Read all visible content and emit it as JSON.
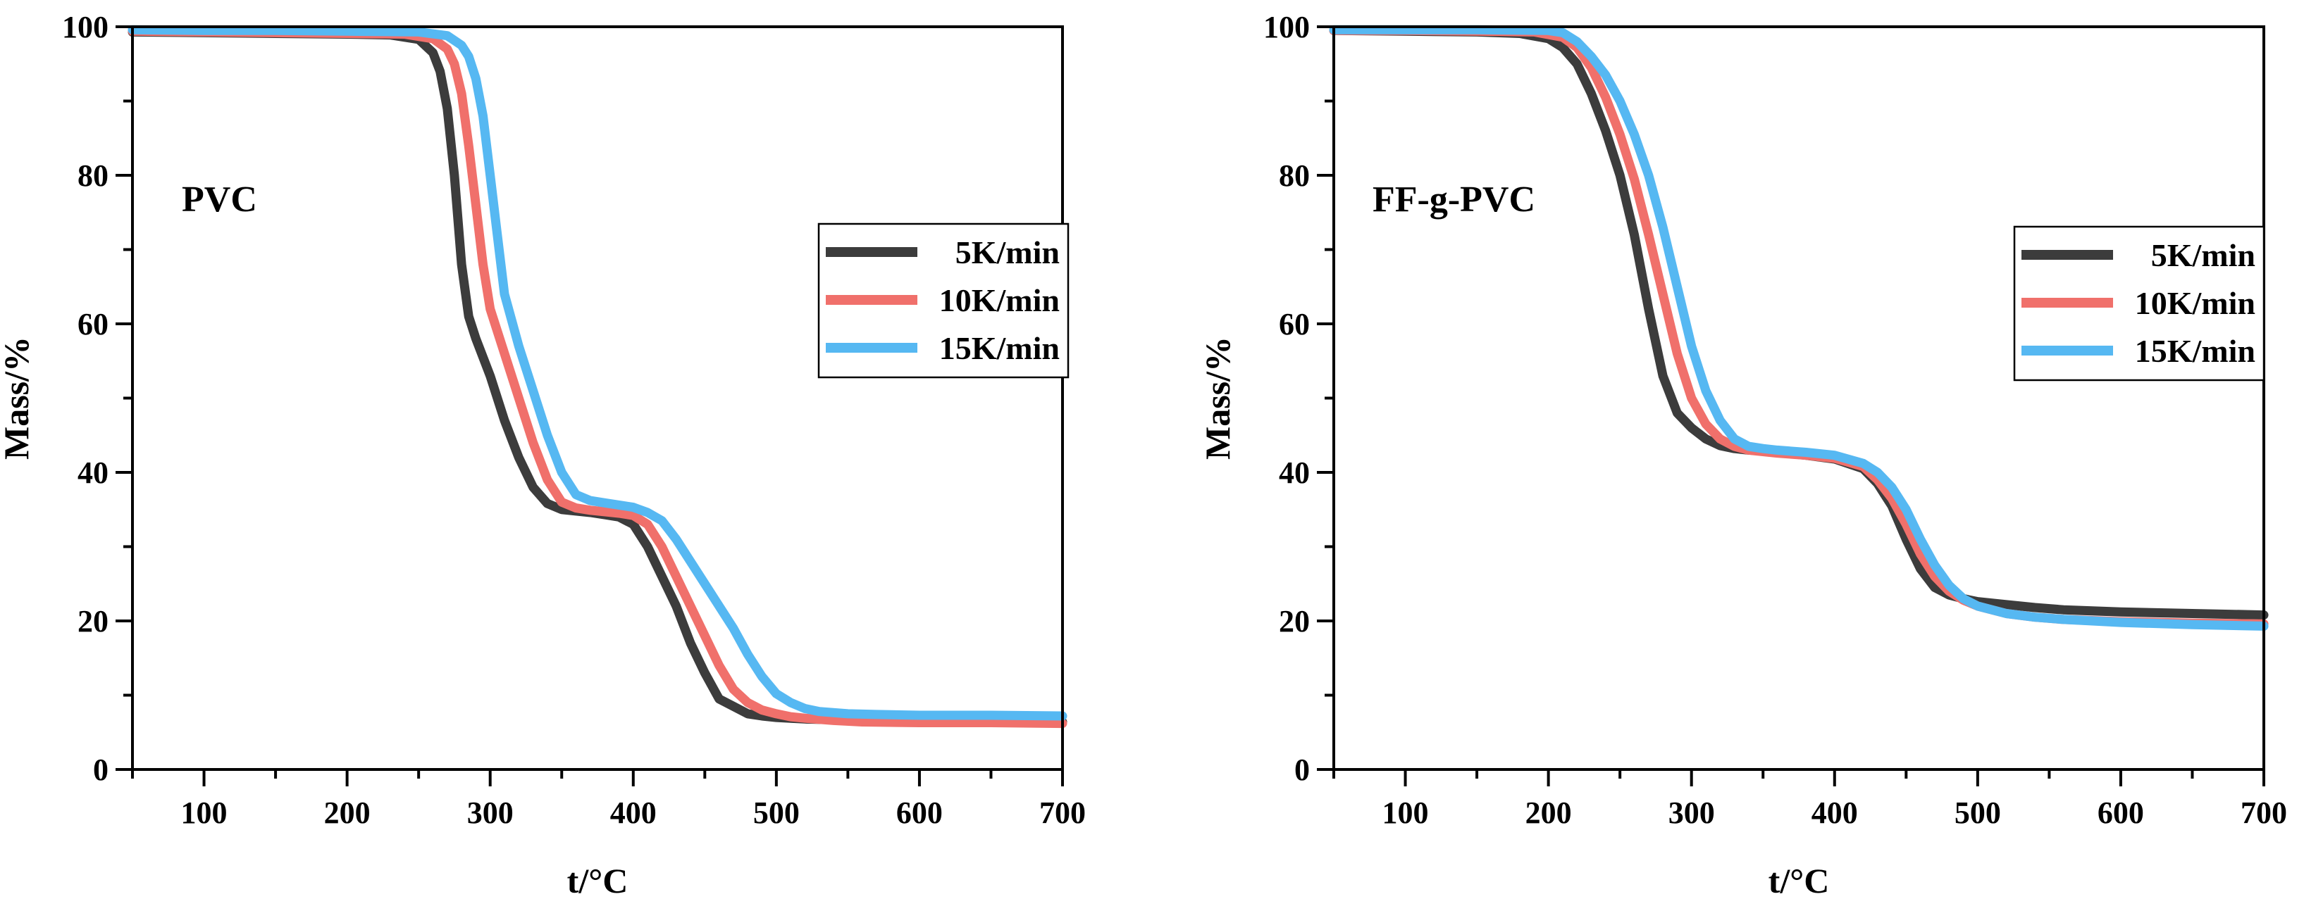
{
  "colors": {
    "5K/min": "#3c3c3c",
    "10K/min": "#f0706b",
    "15K/min": "#56b8f2"
  },
  "chart_data": [
    {
      "type": "line",
      "panel_label": "PVC",
      "xlabel": "t/°C",
      "ylabel": "Mass/%",
      "xlim": [
        50,
        700
      ],
      "ylim": [
        0,
        100
      ],
      "xticks": [
        100,
        200,
        300,
        400,
        500,
        600,
        700
      ],
      "yticks": [
        0,
        20,
        40,
        60,
        80,
        100
      ],
      "xtick_labels": [
        "100",
        "200",
        "300",
        "400",
        "500",
        "600",
        "700"
      ],
      "ytick_labels": [
        "0",
        "20",
        "40",
        "60",
        "80",
        "100"
      ],
      "legend": [
        "5K/min",
        "10K/min",
        "15K/min"
      ],
      "legend_position": "upper-right",
      "series": [
        {
          "name": "5K/min",
          "x": [
            50,
            100,
            150,
            200,
            230,
            250,
            260,
            265,
            270,
            275,
            280,
            285,
            290,
            300,
            310,
            320,
            330,
            340,
            350,
            360,
            370,
            380,
            390,
            400,
            410,
            420,
            430,
            440,
            450,
            460,
            470,
            480,
            490,
            500,
            510,
            520,
            540,
            560,
            600,
            650,
            700
          ],
          "y": [
            99.3,
            99.2,
            99.1,
            99.0,
            98.9,
            98.3,
            96.5,
            94,
            89,
            80,
            68,
            61,
            58,
            53,
            47,
            42,
            38,
            35.8,
            35,
            34.8,
            34.6,
            34.3,
            34,
            33,
            30,
            26,
            22,
            17,
            13,
            9.5,
            8.5,
            7.5,
            7.2,
            7,
            6.9,
            6.8,
            6.7,
            6.6,
            6.5,
            6.5,
            6.4
          ]
        },
        {
          "name": "10K/min",
          "x": [
            50,
            100,
            150,
            200,
            240,
            260,
            270,
            275,
            280,
            285,
            290,
            295,
            300,
            310,
            320,
            330,
            340,
            350,
            360,
            370,
            380,
            390,
            400,
            410,
            420,
            430,
            440,
            450,
            460,
            470,
            480,
            490,
            500,
            510,
            520,
            540,
            560,
            600,
            650,
            700
          ],
          "y": [
            99.4,
            99.3,
            99.2,
            99.1,
            99.0,
            98.4,
            97,
            95,
            91,
            84,
            76,
            68,
            62,
            56,
            50,
            44,
            39,
            36,
            35.2,
            34.9,
            34.7,
            34.5,
            34.2,
            33,
            30,
            26,
            22,
            18,
            14,
            10.8,
            9,
            8,
            7.5,
            7.1,
            6.9,
            6.6,
            6.4,
            6.3,
            6.3,
            6.2
          ]
        },
        {
          "name": "15K/min",
          "x": [
            50,
            100,
            150,
            200,
            250,
            270,
            280,
            285,
            290,
            295,
            300,
            305,
            310,
            320,
            330,
            340,
            350,
            360,
            370,
            380,
            390,
            400,
            410,
            420,
            430,
            440,
            450,
            460,
            470,
            480,
            490,
            500,
            510,
            520,
            530,
            550,
            570,
            600,
            650,
            700
          ],
          "y": [
            99.6,
            99.5,
            99.5,
            99.4,
            99.3,
            98.8,
            97.5,
            96,
            93,
            88,
            80,
            72,
            64,
            57,
            51,
            45,
            40,
            37,
            36.2,
            35.9,
            35.6,
            35.3,
            34.6,
            33.5,
            31,
            28,
            25,
            22,
            19,
            15.5,
            12.5,
            10.2,
            9,
            8.2,
            7.8,
            7.5,
            7.4,
            7.3,
            7.3,
            7.2
          ]
        }
      ]
    },
    {
      "type": "line",
      "panel_label": "FF-g-PVC",
      "xlabel": "t/°C",
      "ylabel": "Mass/%",
      "xlim": [
        50,
        700
      ],
      "ylim": [
        0,
        100
      ],
      "xticks": [
        100,
        200,
        300,
        400,
        500,
        600,
        700
      ],
      "yticks": [
        0,
        20,
        40,
        60,
        80,
        100
      ],
      "xtick_labels": [
        "100",
        "200",
        "300",
        "400",
        "500",
        "600",
        "700"
      ],
      "ytick_labels": [
        "0",
        "20",
        "40",
        "60",
        "80",
        "100"
      ],
      "legend": [
        "5K/min",
        "10K/min",
        "15K/min"
      ],
      "legend_position": "upper-right",
      "series": [
        {
          "name": "5K/min",
          "x": [
            50,
            100,
            150,
            180,
            200,
            210,
            220,
            230,
            240,
            250,
            260,
            270,
            280,
            290,
            300,
            310,
            320,
            330,
            340,
            350,
            360,
            380,
            400,
            420,
            430,
            440,
            450,
            460,
            470,
            480,
            490,
            500,
            520,
            540,
            560,
            600,
            650,
            700
          ],
          "y": [
            99.5,
            99.4,
            99.3,
            99.1,
            98.4,
            97.2,
            95,
            91,
            86,
            80,
            72,
            62,
            53,
            48,
            46,
            44.5,
            43.6,
            43.2,
            43,
            42.9,
            42.7,
            42.3,
            41.8,
            40.5,
            38.5,
            35.5,
            31,
            27,
            24.5,
            23.5,
            23,
            22.6,
            22.2,
            21.8,
            21.5,
            21.2,
            21,
            20.8
          ]
        },
        {
          "name": "10K/min",
          "x": [
            50,
            100,
            150,
            190,
            210,
            220,
            230,
            240,
            250,
            260,
            270,
            280,
            290,
            300,
            310,
            320,
            330,
            340,
            350,
            360,
            380,
            400,
            420,
            430,
            440,
            450,
            460,
            470,
            480,
            490,
            500,
            520,
            540,
            560,
            600,
            650,
            700
          ],
          "y": [
            99.5,
            99.5,
            99.4,
            99.3,
            98.6,
            97.2,
            94.5,
            90.5,
            85.5,
            79.5,
            72,
            64,
            56,
            50,
            46.5,
            44.5,
            43.5,
            43,
            42.8,
            42.6,
            42.3,
            41.9,
            40.8,
            39,
            36.5,
            33,
            29,
            26,
            24,
            22.8,
            22,
            21,
            20.5,
            20.2,
            19.9,
            19.7,
            19.6
          ]
        },
        {
          "name": "15K/min",
          "x": [
            50,
            100,
            150,
            200,
            210,
            220,
            230,
            240,
            250,
            260,
            270,
            280,
            290,
            300,
            310,
            320,
            330,
            340,
            350,
            360,
            380,
            400,
            420,
            430,
            440,
            450,
            460,
            470,
            480,
            490,
            500,
            520,
            540,
            560,
            600,
            650,
            700
          ],
          "y": [
            99.6,
            99.6,
            99.6,
            99.5,
            99.2,
            98,
            96,
            93.5,
            90,
            85.5,
            80,
            73,
            65,
            57,
            51,
            47,
            44.5,
            43.5,
            43.2,
            43,
            42.7,
            42.3,
            41.2,
            40,
            38,
            35,
            31,
            27.5,
            24.8,
            23,
            22,
            21,
            20.5,
            20.2,
            19.8,
            19.5,
            19.3
          ]
        }
      ]
    }
  ]
}
